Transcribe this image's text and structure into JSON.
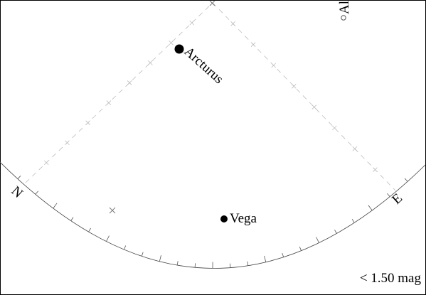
{
  "stars": [
    {
      "id": "arcturus",
      "name": "Arcturus"
    },
    {
      "id": "vega",
      "name": "Vega"
    },
    {
      "id": "altair",
      "name": "Al"
    }
  ],
  "cardinals": {
    "north": "N",
    "east": "E"
  },
  "legend": {
    "magnitude_limit": "< 1.50 mag"
  },
  "colors": {
    "background": "#ffffff",
    "ink": "#000000",
    "guide": "#bdbdbd"
  }
}
